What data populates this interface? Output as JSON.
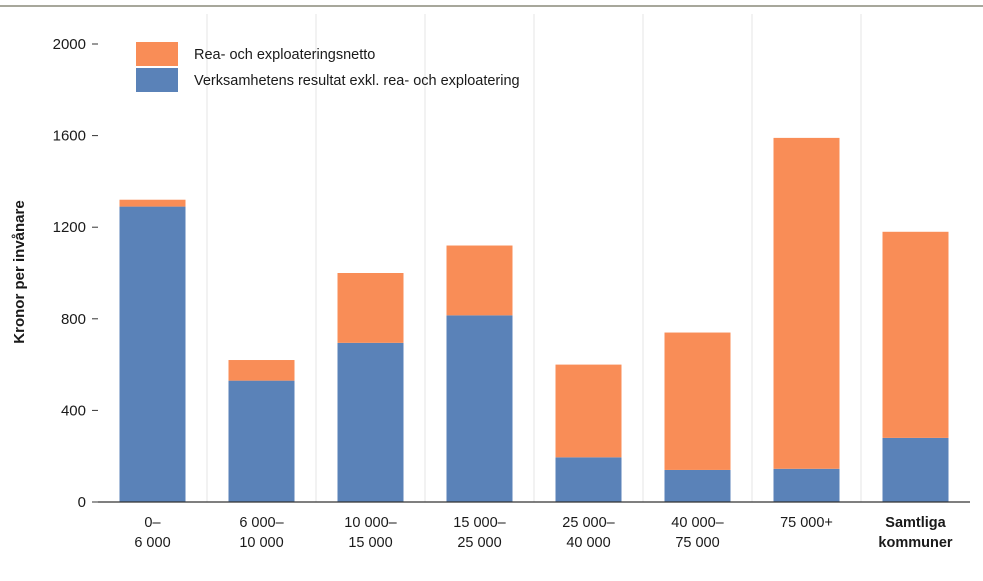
{
  "chart_data": {
    "type": "bar",
    "stacked": true,
    "ylabel": "Kronor per invånare",
    "ylim": [
      0,
      2000
    ],
    "yticks": [
      0,
      400,
      800,
      1200,
      1600,
      2000
    ],
    "yticks_labels": [
      "0",
      "400",
      "800",
      "1200",
      "1600",
      "2000"
    ],
    "grid": "vertical",
    "legend_position": "top-left",
    "categories": [
      [
        "0–",
        "6 000"
      ],
      [
        "6 000–",
        "10 000"
      ],
      [
        "10 000–",
        "15 000"
      ],
      [
        "15 000–",
        "25 000"
      ],
      [
        "25 000–",
        "40 000"
      ],
      [
        "40 000–",
        "75 000"
      ],
      [
        "75 000+"
      ],
      [
        "Samtliga",
        "kommuner"
      ]
    ],
    "bold_categories": [
      7
    ],
    "series": [
      {
        "name": "Verksamhetens resultat exkl. rea- och exploatering",
        "color": "#5a82b8",
        "values": [
          1290,
          530,
          695,
          815,
          195,
          140,
          145,
          280
        ]
      },
      {
        "name": "Rea- och exploateringsnetto",
        "color": "#f98d57",
        "values": [
          30,
          90,
          305,
          305,
          405,
          600,
          1445,
          900
        ]
      }
    ],
    "legend_order": [
      1,
      0
    ]
  }
}
